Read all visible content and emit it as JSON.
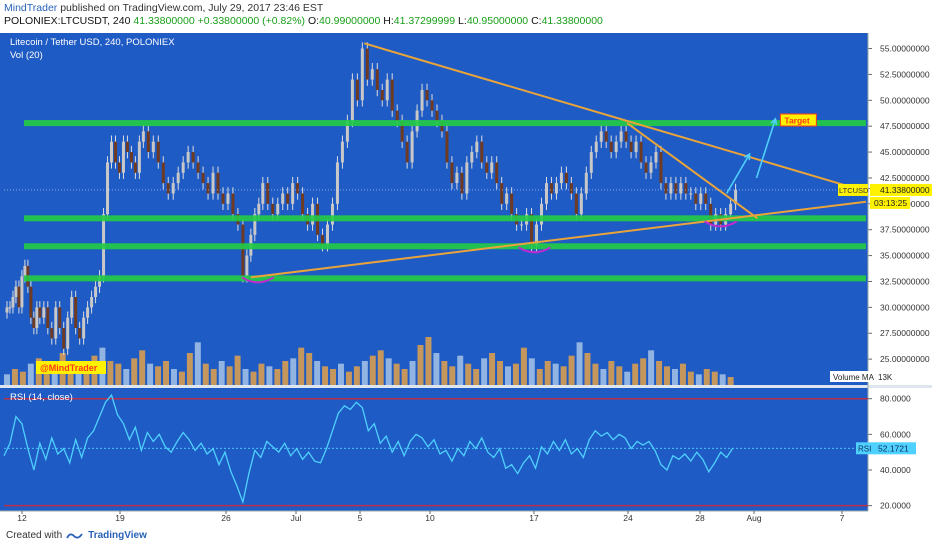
{
  "header": {
    "author": "MindTrader",
    "published_text": "published on TradingView.com, July 29, 2017 23:46 EST",
    "symbol": "POLONIEX:LTCUSDT, 240",
    "last_price": "41.33800000",
    "change": "+0.33800000 (+0.82%)",
    "o_label": "O:",
    "o_value": "40.99000000",
    "h_label": "H:",
    "h_value": "41.37299999",
    "l_label": "L:",
    "l_value": "40.95000000",
    "c_label": "C:",
    "c_value": "41.33800000"
  },
  "footer": {
    "created_with": "Created with",
    "brand": "TradingView"
  },
  "colors": {
    "pane_bg": "#1f5bc4",
    "candle_up": "#c8c8c8",
    "candle_down": "#6f3a22",
    "support": "#22cc44",
    "trendline": "#e8a43a",
    "rsi_line": "#4fd1ff",
    "rsi_bound": "#b9304a",
    "highlight": "#c02bd0",
    "label_yellow": "#fff200",
    "label_red": "#ff3b1a",
    "volume_up": "#e3a24b",
    "volume_ma": "#a6c4e8"
  },
  "chart_data": [
    {
      "type": "candlestick",
      "title": "Litecoin / Tether USD, 240, POLONIEX",
      "indicator_label": "Vol (20)",
      "x_tick_labels": [
        "12",
        "19",
        "26",
        "Jul",
        "5",
        "10",
        "17",
        "24",
        "28",
        "Aug",
        "7"
      ],
      "ylim": [
        22.5,
        56.5
      ],
      "y_tick_labels": [
        "55.00000000",
        "52.50000000",
        "50.00000000",
        "47.50000000",
        "45.00000000",
        "42.50000000",
        "40.00000000",
        "37.50000000",
        "35.00000000",
        "32.50000000",
        "30.00000000",
        "27.50000000",
        "25.00000000"
      ],
      "y_ticks": [
        55,
        52.5,
        50,
        47.5,
        45,
        42.5,
        40,
        37.5,
        35,
        32.5,
        30,
        27.5,
        25
      ],
      "price_path": [
        [
          0,
          29.5
        ],
        [
          3,
          30
        ],
        [
          6,
          30
        ],
        [
          9,
          31
        ],
        [
          12,
          32
        ],
        [
          15,
          30
        ],
        [
          18,
          33
        ],
        [
          21,
          34
        ],
        [
          24,
          32
        ],
        [
          27,
          29
        ],
        [
          30,
          28
        ],
        [
          33,
          30
        ],
        [
          36,
          29
        ],
        [
          40,
          30
        ],
        [
          44,
          28
        ],
        [
          48,
          27
        ],
        [
          52,
          30
        ],
        [
          56,
          28
        ],
        [
          60,
          26
        ],
        [
          64,
          29
        ],
        [
          68,
          31
        ],
        [
          72,
          28
        ],
        [
          76,
          27
        ],
        [
          80,
          29
        ],
        [
          84,
          30
        ],
        [
          88,
          31
        ],
        [
          92,
          32
        ],
        [
          96,
          33
        ],
        [
          100,
          39
        ],
        [
          104,
          44
        ],
        [
          108,
          46
        ],
        [
          112,
          44
        ],
        [
          116,
          43
        ],
        [
          120,
          46
        ],
        [
          124,
          45
        ],
        [
          128,
          44
        ],
        [
          132,
          43
        ],
        [
          136,
          46
        ],
        [
          140,
          47
        ],
        [
          145,
          45
        ],
        [
          150,
          46
        ],
        [
          155,
          44
        ],
        [
          160,
          42
        ],
        [
          165,
          41
        ],
        [
          170,
          42
        ],
        [
          175,
          43
        ],
        [
          180,
          44
        ],
        [
          185,
          45
        ],
        [
          190,
          44
        ],
        [
          195,
          43
        ],
        [
          200,
          42
        ],
        [
          205,
          41
        ],
        [
          210,
          43
        ],
        [
          215,
          41
        ],
        [
          220,
          40
        ],
        [
          225,
          41
        ],
        [
          230,
          39
        ],
        [
          235,
          38
        ],
        [
          240,
          33
        ],
        [
          244,
          35
        ],
        [
          248,
          37
        ],
        [
          252,
          39
        ],
        [
          256,
          40
        ],
        [
          260,
          42
        ],
        [
          265,
          40
        ],
        [
          270,
          39
        ],
        [
          275,
          40
        ],
        [
          280,
          41
        ],
        [
          285,
          40
        ],
        [
          290,
          42
        ],
        [
          295,
          41
        ],
        [
          300,
          39
        ],
        [
          305,
          38
        ],
        [
          310,
          40
        ],
        [
          315,
          37
        ],
        [
          320,
          36
        ],
        [
          325,
          38
        ],
        [
          330,
          40
        ],
        [
          335,
          44
        ],
        [
          340,
          46
        ],
        [
          345,
          48
        ],
        [
          350,
          52
        ],
        [
          355,
          50
        ],
        [
          360,
          55
        ],
        [
          365,
          52
        ],
        [
          370,
          53
        ],
        [
          375,
          51
        ],
        [
          380,
          50
        ],
        [
          385,
          52
        ],
        [
          390,
          49
        ],
        [
          395,
          48
        ],
        [
          400,
          46
        ],
        [
          405,
          44
        ],
        [
          410,
          47
        ],
        [
          415,
          49
        ],
        [
          420,
          51
        ],
        [
          425,
          50
        ],
        [
          430,
          49
        ],
        [
          435,
          48
        ],
        [
          440,
          47
        ],
        [
          445,
          44
        ],
        [
          450,
          42
        ],
        [
          455,
          43
        ],
        [
          460,
          41
        ],
        [
          465,
          44
        ],
        [
          470,
          45
        ],
        [
          475,
          46
        ],
        [
          480,
          44
        ],
        [
          485,
          43
        ],
        [
          490,
          44
        ],
        [
          495,
          42
        ],
        [
          500,
          40
        ],
        [
          505,
          41
        ],
        [
          510,
          39
        ],
        [
          515,
          38
        ],
        [
          520,
          38
        ],
        [
          525,
          39
        ],
        [
          530,
          36
        ],
        [
          535,
          38
        ],
        [
          540,
          40
        ],
        [
          545,
          42
        ],
        [
          550,
          41
        ],
        [
          555,
          42
        ],
        [
          560,
          43
        ],
        [
          565,
          42
        ],
        [
          570,
          41
        ],
        [
          575,
          39
        ],
        [
          580,
          41
        ],
        [
          585,
          43
        ],
        [
          590,
          45
        ],
        [
          595,
          46
        ],
        [
          600,
          47
        ],
        [
          605,
          46
        ],
        [
          610,
          45
        ],
        [
          615,
          46
        ],
        [
          620,
          47
        ],
        [
          625,
          46
        ],
        [
          630,
          45
        ],
        [
          635,
          46
        ],
        [
          640,
          44
        ],
        [
          645,
          43
        ],
        [
          650,
          44
        ],
        [
          655,
          45
        ],
        [
          660,
          42
        ],
        [
          665,
          41
        ],
        [
          670,
          42
        ],
        [
          675,
          41
        ],
        [
          680,
          42
        ],
        [
          685,
          41
        ],
        [
          690,
          41
        ],
        [
          695,
          40
        ],
        [
          700,
          41
        ],
        [
          705,
          40
        ],
        [
          710,
          38
        ],
        [
          715,
          39
        ],
        [
          720,
          38
        ],
        [
          725,
          39
        ],
        [
          730,
          40
        ],
        [
          735,
          41.34
        ]
      ],
      "last_price_label": "LTCUSDT",
      "last_price": "41.33800000",
      "countdown": "03:13:25",
      "support_zones": [
        {
          "from": 0,
          "to": 866,
          "y": 47.8
        },
        {
          "from": 0,
          "to": 866,
          "y": 38.6
        },
        {
          "from": 0,
          "to": 866,
          "y": 35.9
        },
        {
          "from": 0,
          "to": 866,
          "y": 32.8
        }
      ],
      "trendlines": [
        {
          "x1": 362,
          "y1": 55.5,
          "x2": 866,
          "y2": 41.2
        },
        {
          "x1": 626,
          "y1": 47.8,
          "x2": 757,
          "y2": 38.6
        },
        {
          "x1": 248,
          "y1": 32.9,
          "x2": 866,
          "y2": 40.2
        }
      ],
      "arrows": [
        {
          "x1": 726,
          "y1": 41.0,
          "x2": 749,
          "y2": 44.8
        },
        {
          "x1": 756,
          "y1": 42.5,
          "x2": 775,
          "y2": 48.2
        }
      ],
      "target_label": "Target",
      "watermark": "@MindTrader",
      "volume_label": "Volume MA",
      "volume_value": "13K",
      "volume_bars": [
        4,
        6,
        5,
        8,
        10,
        7,
        9,
        12,
        6,
        5,
        7,
        11,
        14,
        9,
        8,
        6,
        10,
        13,
        8,
        7,
        9,
        6,
        5,
        12,
        16,
        8,
        6,
        9,
        7,
        11,
        6,
        5,
        8,
        7,
        6,
        9,
        10,
        14,
        12,
        9,
        7,
        6,
        8,
        5,
        7,
        9,
        11,
        13,
        10,
        8,
        6,
        9,
        15,
        18,
        12,
        9,
        7,
        11,
        8,
        6,
        10,
        12,
        9,
        7,
        8,
        14,
        10,
        6,
        9,
        8,
        7,
        11,
        16,
        12,
        8,
        6,
        9,
        7,
        5,
        8,
        10,
        13,
        9,
        7,
        6,
        8,
        5,
        4,
        6,
        5,
        4,
        3
      ]
    },
    {
      "type": "line",
      "title": "RSI (14, close)",
      "x_tick_labels": [
        "12",
        "19",
        "26",
        "Jul",
        "5",
        "10",
        "17",
        "24",
        "28",
        "Aug",
        "7"
      ],
      "ylim": [
        17,
        86
      ],
      "y_tick_labels": [
        "80.0000",
        "60.0000",
        "40.0000",
        "20.0000"
      ],
      "y_ticks": [
        80,
        60,
        40,
        20
      ],
      "bounds": [
        80,
        20
      ],
      "current_label": "RSI",
      "current_value": "52.1721",
      "values": [
        [
          0,
          48
        ],
        [
          6,
          55
        ],
        [
          12,
          70
        ],
        [
          18,
          66
        ],
        [
          24,
          52
        ],
        [
          30,
          40
        ],
        [
          36,
          55
        ],
        [
          42,
          46
        ],
        [
          48,
          58
        ],
        [
          54,
          49
        ],
        [
          60,
          52
        ],
        [
          66,
          44
        ],
        [
          72,
          57
        ],
        [
          78,
          47
        ],
        [
          84,
          58
        ],
        [
          90,
          62
        ],
        [
          96,
          70
        ],
        [
          102,
          78
        ],
        [
          108,
          82
        ],
        [
          114,
          71
        ],
        [
          120,
          66
        ],
        [
          126,
          57
        ],
        [
          132,
          64
        ],
        [
          138,
          51
        ],
        [
          144,
          61
        ],
        [
          150,
          56
        ],
        [
          156,
          60
        ],
        [
          162,
          53
        ],
        [
          168,
          50
        ],
        [
          174,
          56
        ],
        [
          180,
          61
        ],
        [
          186,
          57
        ],
        [
          192,
          51
        ],
        [
          198,
          55
        ],
        [
          204,
          49
        ],
        [
          210,
          52
        ],
        [
          216,
          43
        ],
        [
          222,
          50
        ],
        [
          228,
          39
        ],
        [
          234,
          31
        ],
        [
          240,
          22
        ],
        [
          246,
          38
        ],
        [
          252,
          51
        ],
        [
          258,
          47
        ],
        [
          264,
          56
        ],
        [
          270,
          53
        ],
        [
          276,
          50
        ],
        [
          282,
          55
        ],
        [
          288,
          48
        ],
        [
          294,
          52
        ],
        [
          300,
          46
        ],
        [
          306,
          50
        ],
        [
          312,
          45
        ],
        [
          318,
          44
        ],
        [
          324,
          52
        ],
        [
          330,
          62
        ],
        [
          336,
          72
        ],
        [
          342,
          76
        ],
        [
          348,
          74
        ],
        [
          354,
          78
        ],
        [
          360,
          75
        ],
        [
          366,
          62
        ],
        [
          372,
          66
        ],
        [
          378,
          55
        ],
        [
          384,
          59
        ],
        [
          390,
          50
        ],
        [
          396,
          56
        ],
        [
          402,
          48
        ],
        [
          408,
          56
        ],
        [
          414,
          60
        ],
        [
          420,
          58
        ],
        [
          426,
          53
        ],
        [
          432,
          57
        ],
        [
          438,
          49
        ],
        [
          444,
          51
        ],
        [
          450,
          45
        ],
        [
          456,
          52
        ],
        [
          462,
          48
        ],
        [
          468,
          56
        ],
        [
          474,
          52
        ],
        [
          480,
          58
        ],
        [
          486,
          50
        ],
        [
          492,
          47
        ],
        [
          498,
          52
        ],
        [
          504,
          41
        ],
        [
          510,
          43
        ],
        [
          516,
          38
        ],
        [
          522,
          44
        ],
        [
          528,
          48
        ],
        [
          534,
          41
        ],
        [
          540,
          53
        ],
        [
          546,
          49
        ],
        [
          552,
          56
        ],
        [
          558,
          51
        ],
        [
          564,
          57
        ],
        [
          570,
          49
        ],
        [
          576,
          52
        ],
        [
          582,
          47
        ],
        [
          588,
          57
        ],
        [
          594,
          62
        ],
        [
          600,
          59
        ],
        [
          606,
          61
        ],
        [
          612,
          57
        ],
        [
          618,
          60
        ],
        [
          624,
          58
        ],
        [
          630,
          52
        ],
        [
          636,
          56
        ],
        [
          642,
          54
        ],
        [
          648,
          56
        ],
        [
          654,
          51
        ],
        [
          660,
          43
        ],
        [
          666,
          40
        ],
        [
          672,
          48
        ],
        [
          678,
          46
        ],
        [
          684,
          49
        ],
        [
          690,
          45
        ],
        [
          696,
          50
        ],
        [
          702,
          46
        ],
        [
          708,
          39
        ],
        [
          714,
          44
        ],
        [
          720,
          50
        ],
        [
          726,
          47
        ],
        [
          732,
          52.17
        ]
      ]
    }
  ]
}
